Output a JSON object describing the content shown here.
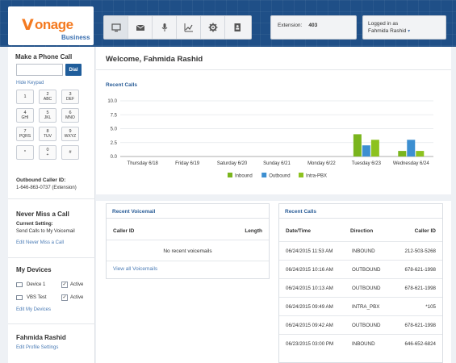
{
  "brand": {
    "logo_mark": "V",
    "logo_text": "onage",
    "sub": "Business"
  },
  "nav": {
    "icons": [
      "monitor-icon",
      "envelope-icon",
      "microphone-icon",
      "chart-icon",
      "gear-icon",
      "contacts-icon"
    ]
  },
  "extension": {
    "label": "Extension:",
    "value": "403"
  },
  "login": {
    "label": "Logged in as",
    "user": "Fahmida Rashid",
    "caret": "▾"
  },
  "sidebar": {
    "call_title": "Make a Phone Call",
    "dial_label": "Dial",
    "hide_keypad": "Hide Keypad",
    "keys": [
      {
        "n": "1",
        "s": ""
      },
      {
        "n": "2",
        "s": "ABC"
      },
      {
        "n": "3",
        "s": "DEF"
      },
      {
        "n": "4",
        "s": "GHI"
      },
      {
        "n": "5",
        "s": "JKL"
      },
      {
        "n": "6",
        "s": "MNO"
      },
      {
        "n": "7",
        "s": "PQRS"
      },
      {
        "n": "8",
        "s": "TUV"
      },
      {
        "n": "9",
        "s": "WXYZ"
      },
      {
        "n": "*",
        "s": ""
      },
      {
        "n": "0",
        "s": "+"
      },
      {
        "n": "#",
        "s": ""
      }
    ],
    "outbound_label": "Outbound Caller ID:",
    "outbound_value": "1-646-863-0737 (Extension)",
    "never_miss_title": "Never Miss a Call",
    "current_setting_label": "Current Setting:",
    "current_setting_value": "Send Calls to My Voicemail",
    "edit_never_miss": "Edit Never Miss a Call",
    "devices_title": "My Devices",
    "devices": [
      {
        "name": "Device 1",
        "status": "Active",
        "check": "✓"
      },
      {
        "name": "VBS Test",
        "status": "Active",
        "check": "✓"
      }
    ],
    "edit_devices": "Edit My Devices",
    "profile_name": "Fahmida Rashid",
    "edit_profile": "Edit Profile Settings"
  },
  "main": {
    "welcome": "Welcome, Fahmida Rashid",
    "chart_title": "Recent Calls"
  },
  "chart_data": {
    "type": "bar",
    "title": "Recent Calls",
    "categories": [
      "Thursday 6/18",
      "Friday 6/19",
      "Saturday 6/20",
      "Sunday 6/21",
      "Monday 6/22",
      "Tuesday 6/23",
      "Wednesday 6/24"
    ],
    "series": [
      {
        "name": "Inbound",
        "color": "#7ab51d",
        "values": [
          0,
          0,
          0,
          0,
          0,
          4,
          1
        ]
      },
      {
        "name": "Outbound",
        "color": "#3d8fd1",
        "values": [
          0,
          0,
          0,
          0,
          0,
          2,
          3
        ]
      },
      {
        "name": "Intra-PBX",
        "color": "#8dc21f",
        "values": [
          0,
          0,
          0,
          0,
          0,
          3,
          1
        ]
      }
    ],
    "yticks": [
      "0.0",
      "2.5",
      "5.0",
      "7.5",
      "10.0"
    ],
    "ylim": [
      0,
      10
    ],
    "grid": true,
    "legend": "bottom"
  },
  "voicemail": {
    "title": "Recent Voicemail",
    "col_caller": "Caller ID",
    "col_length": "Length",
    "empty": "No recent voicemails",
    "view_all": "View all Voicemails"
  },
  "recent_calls": {
    "title": "Recent Calls",
    "col_date": "Date/Time",
    "col_dir": "Direction",
    "col_caller": "Caller ID",
    "rows": [
      {
        "date": "06/24/2015 11:53 AM",
        "dir": "INBOUND",
        "caller": "212-503-5268"
      },
      {
        "date": "06/24/2015 10:16 AM",
        "dir": "OUTBOUND",
        "caller": "678-621-1998"
      },
      {
        "date": "06/24/2015 10:13 AM",
        "dir": "OUTBOUND",
        "caller": "678-621-1998"
      },
      {
        "date": "06/24/2015 09:49 AM",
        "dir": "INTRA_PBX",
        "caller": "*105"
      },
      {
        "date": "06/24/2015 09:42 AM",
        "dir": "OUTBOUND",
        "caller": "678-621-1998"
      },
      {
        "date": "06/23/2015 03:00 PM",
        "dir": "INBOUND",
        "caller": "646-652-6824"
      }
    ]
  }
}
